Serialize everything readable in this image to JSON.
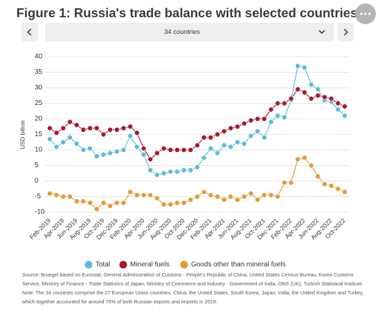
{
  "controls": {
    "selector": "34 countries"
  },
  "chart_data": {
    "type": "line",
    "title": "Figure 1: Russia's trade balance with selected countries",
    "y_label": "USD billion",
    "categories": [
      "Feb-2019",
      null,
      "Apr-2019",
      null,
      "Jun-2019",
      null,
      "Aug-2019",
      null,
      "Oct-2019",
      null,
      "Dec-2019",
      null,
      "Feb-2020",
      null,
      "Apr-2020",
      null,
      "Jun-2020",
      null,
      "Aug-2020",
      null,
      "Oct-2020",
      null,
      "Dec-2020",
      null,
      "Feb-2021",
      null,
      "Apr-2021",
      null,
      "Jun-2021",
      null,
      "Aug-2021",
      null,
      "Oct-2021",
      null,
      "Dec-2021",
      null,
      "Feb-2022",
      null,
      "Apr-2022",
      null,
      "Jun-2022",
      null,
      "Aug-2022",
      null,
      "Oct-2022"
    ],
    "series": [
      {
        "name": "Total",
        "color": "#5bbcd6",
        "values": [
          13.5,
          11,
          12.5,
          14,
          12,
          10,
          10.5,
          8,
          8.5,
          9,
          9.5,
          10,
          14.5,
          11,
          8.5,
          3.5,
          2,
          2.5,
          3,
          3,
          3.5,
          3.5,
          4.5,
          7.5,
          10.5,
          9,
          11.5,
          11,
          12.5,
          12,
          14.5,
          16,
          14,
          19,
          21,
          20.5,
          26,
          37,
          36.5,
          31,
          29.5,
          26,
          25.5,
          23,
          21
        ]
      },
      {
        "name": "Mineral fuels",
        "color": "#a6192e",
        "values": [
          17,
          15.5,
          17,
          19,
          18,
          16.5,
          17,
          17,
          15,
          16.5,
          16.5,
          17,
          17.5,
          15.5,
          10.5,
          7,
          9,
          10.5,
          10,
          10,
          10,
          10,
          11.5,
          14,
          14,
          15,
          16,
          17,
          17.5,
          18.5,
          19.5,
          20,
          20,
          23,
          25,
          25,
          26.5,
          29.5,
          28.5,
          26.5,
          27.5,
          27,
          26.5,
          25,
          24
        ]
      },
      {
        "name": "Goods other than mineral fuels",
        "color": "#e39a35",
        "values": [
          -4,
          -4.5,
          -5,
          -5,
          -6.5,
          -6.5,
          -7,
          -9,
          -7,
          -8,
          -7,
          -7,
          -3.5,
          -4.5,
          -4.5,
          -4.5,
          -5.5,
          -7.5,
          -7.5,
          -7,
          -7,
          -6,
          -5,
          -3.5,
          -4.5,
          -5,
          -6,
          -5,
          -6,
          -5,
          -4,
          -6,
          -4.5,
          -4.5,
          -5,
          -0.5,
          -0.5,
          7,
          7.5,
          5,
          1.5,
          -1,
          -1.5,
          -2.5,
          -3.5
        ]
      }
    ],
    "ylim": [
      -10,
      40
    ],
    "yticks": [
      -10,
      -5,
      0,
      5,
      10,
      15,
      20,
      25,
      30,
      35,
      40
    ],
    "grid": true
  },
  "source": "Source: Bruegel based on Eurostat, General Administration of Customs - People's Republic of China, United States Census Bureau, Korea Customs Service, Ministry of Finance - Trade Statistics of Japan, Ministry of Commerce and Industry - Government of India, ONS (UK), Turkish Statistical Institute. Note: The 34 countries comprise the 27 European Union countries, China, the United States, South Korea, Japan, India, the United Kingdom and Turkey, which together accounted for around 75% of both Russian exports and imports in 2019."
}
